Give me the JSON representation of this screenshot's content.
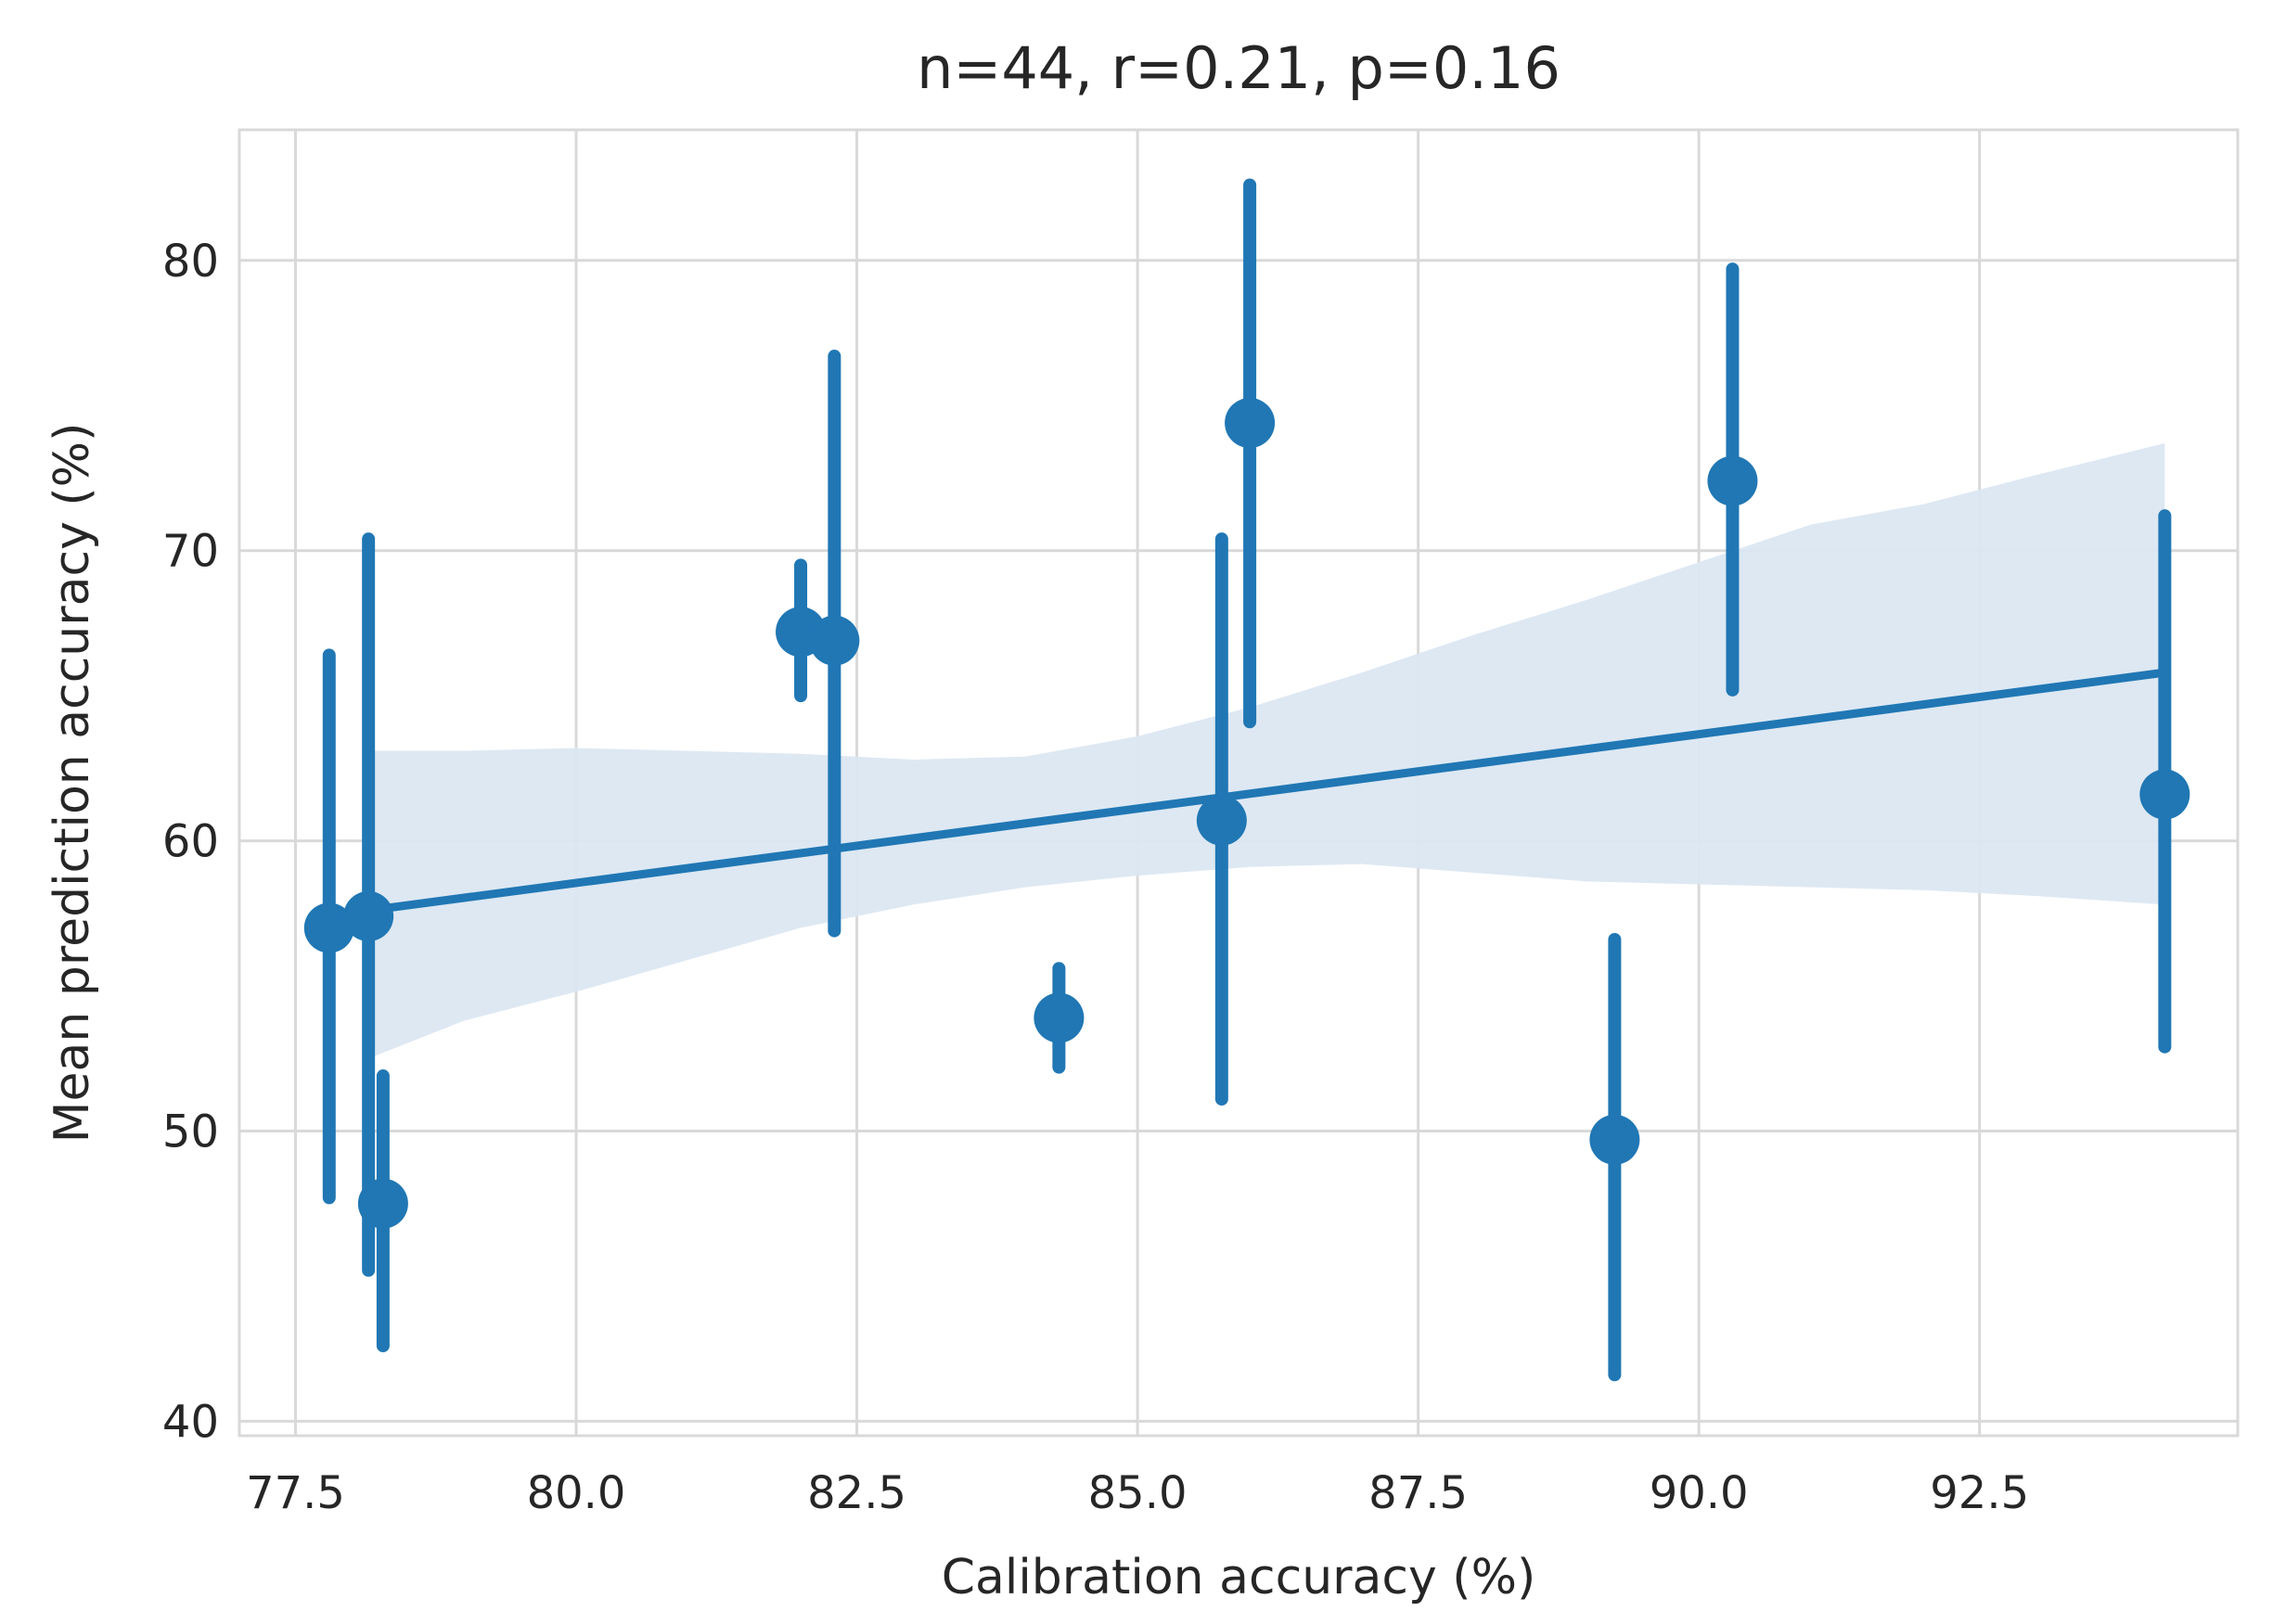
{
  "chart_data": {
    "type": "scatter",
    "title": "n=44, r=0.21, p=0.16",
    "xlabel": "Calibration accuracy (%)",
    "ylabel": "Mean prediction accuracy (%)",
    "xlim": [
      77.0,
      94.8
    ],
    "ylim": [
      39.5,
      84.5
    ],
    "xticks": [
      77.5,
      80.0,
      82.5,
      85.0,
      87.5,
      90.0,
      92.5
    ],
    "xtick_labels": [
      "77.5",
      "80.0",
      "82.5",
      "85.0",
      "87.5",
      "90.0",
      "92.5"
    ],
    "yticks": [
      40,
      50,
      60,
      70,
      80
    ],
    "ytick_labels": [
      "40",
      "50",
      "60",
      "70",
      "80"
    ],
    "grid": true,
    "color": "#2077b4",
    "band_color": "#dbe7f2",
    "points": [
      {
        "x": 77.8,
        "y": 57.0,
        "ylow": 47.7,
        "yhigh": 66.4
      },
      {
        "x": 78.15,
        "y": 57.4,
        "ylow": 45.2,
        "yhigh": 70.4
      },
      {
        "x": 78.28,
        "y": 47.5,
        "ylow": 42.6,
        "yhigh": 51.9
      },
      {
        "x": 82.0,
        "y": 67.2,
        "ylow": 65.0,
        "yhigh": 69.5
      },
      {
        "x": 82.3,
        "y": 66.9,
        "ylow": 56.9,
        "yhigh": 76.7
      },
      {
        "x": 84.3,
        "y": 53.9,
        "ylow": 52.2,
        "yhigh": 55.6
      },
      {
        "x": 85.75,
        "y": 60.7,
        "ylow": 51.1,
        "yhigh": 70.4
      },
      {
        "x": 86.0,
        "y": 74.4,
        "ylow": 64.1,
        "yhigh": 82.6
      },
      {
        "x": 89.25,
        "y": 49.7,
        "ylow": 41.6,
        "yhigh": 56.6
      },
      {
        "x": 90.3,
        "y": 72.4,
        "ylow": 65.2,
        "yhigh": 79.7
      },
      {
        "x": 94.15,
        "y": 61.6,
        "ylow": 52.9,
        "yhigh": 71.2
      }
    ],
    "regression": {
      "x": [
        78.15,
        94.15
      ],
      "y": [
        57.6,
        65.8
      ]
    },
    "confidence_band": {
      "x": [
        78.15,
        79.0,
        80.0,
        81.0,
        82.0,
        83.0,
        84.0,
        85.0,
        86.0,
        87.0,
        88.0,
        89.0,
        90.0,
        91.0,
        92.0,
        93.0,
        94.15
      ],
      "lower": [
        52.5,
        53.8,
        54.8,
        55.9,
        57.0,
        57.8,
        58.4,
        58.8,
        59.1,
        59.2,
        58.9,
        58.6,
        58.5,
        58.4,
        58.3,
        58.1,
        57.8
      ],
      "upper": [
        63.1,
        63.1,
        63.2,
        63.1,
        63.0,
        62.8,
        62.9,
        63.6,
        64.6,
        65.8,
        67.1,
        68.3,
        69.6,
        70.9,
        71.6,
        72.6,
        73.7
      ]
    }
  }
}
